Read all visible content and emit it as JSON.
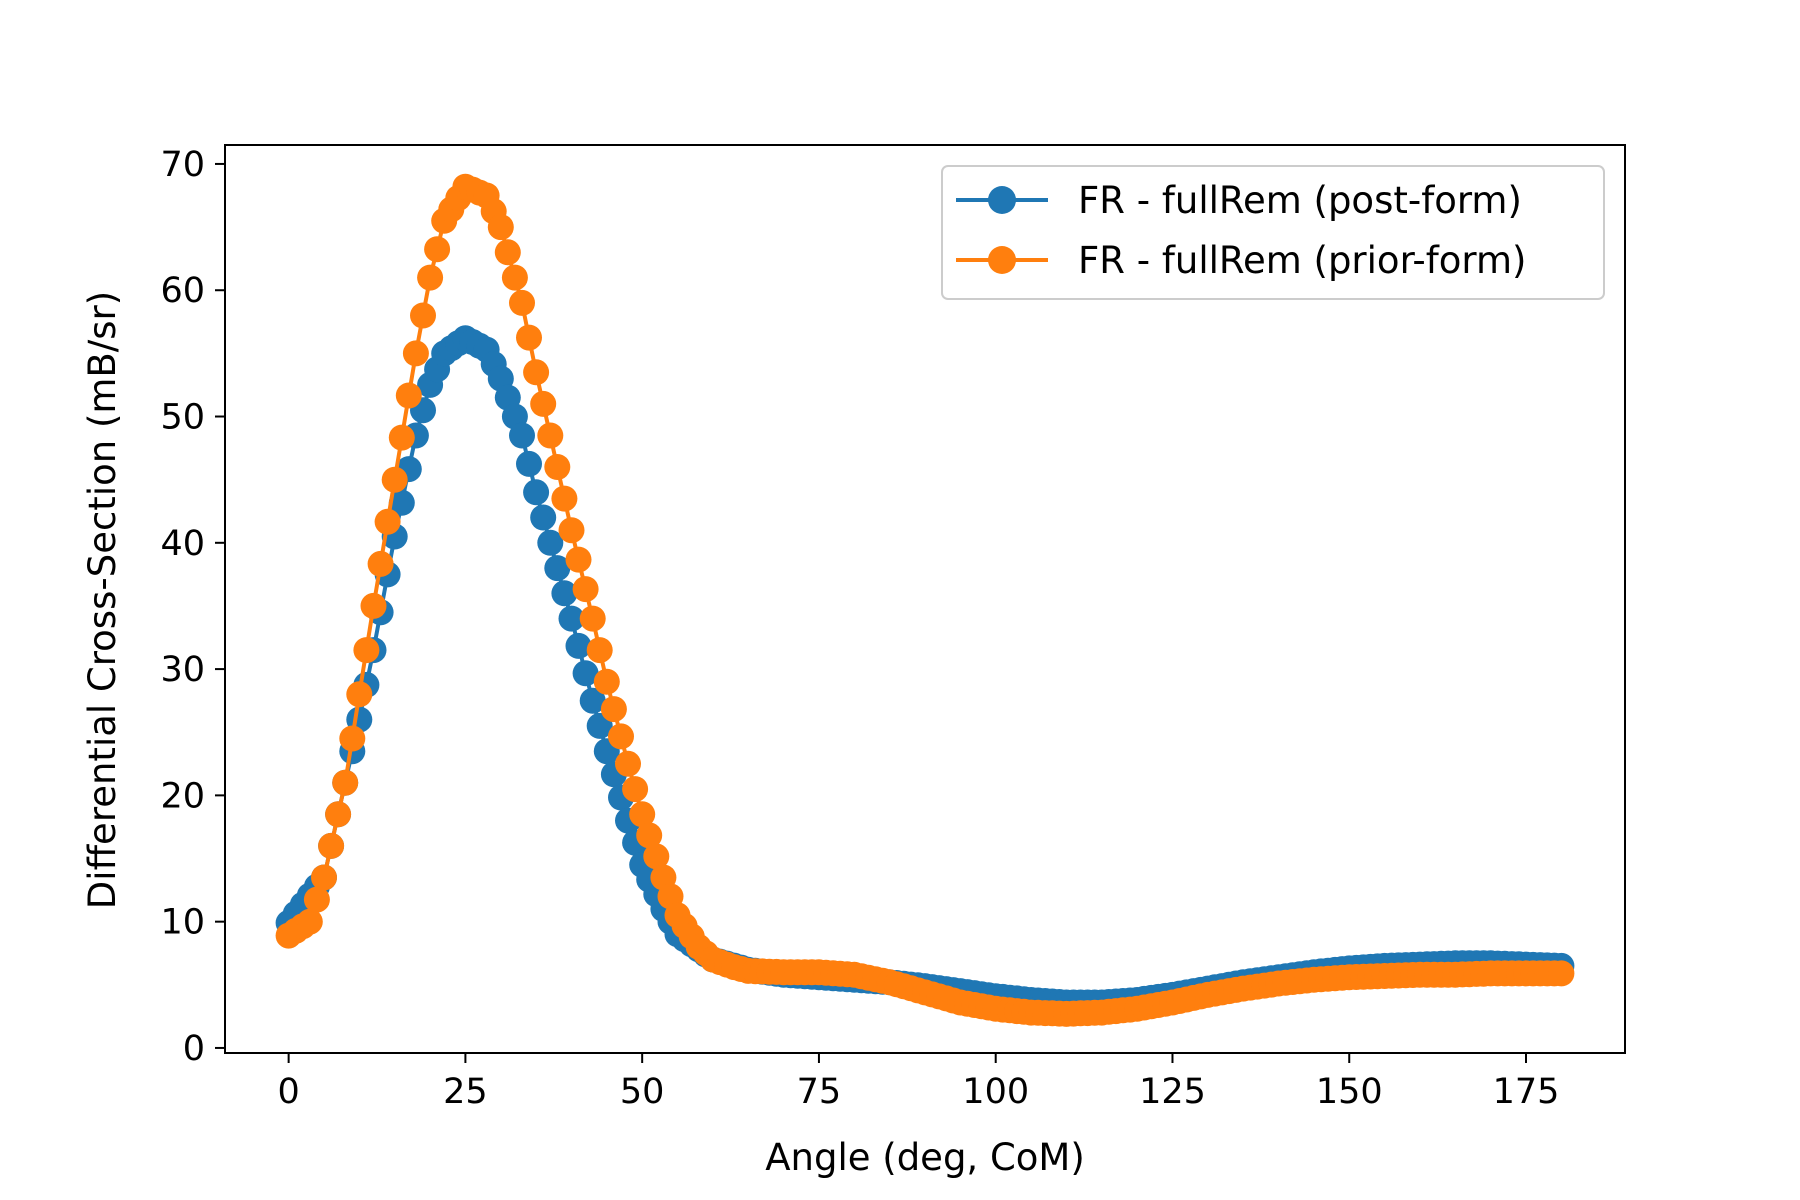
{
  "chart_data": {
    "type": "line",
    "title": "",
    "xlabel": "Angle (deg, CoM)",
    "ylabel": "Differential Cross-Section (mB/sr)",
    "xlim": [
      -9,
      189
    ],
    "ylim": [
      -0.4,
      71.5
    ],
    "xticks": [
      0,
      25,
      50,
      75,
      100,
      125,
      150,
      175
    ],
    "yticks": [
      0,
      10,
      20,
      30,
      40,
      50,
      60,
      70
    ],
    "grid": false,
    "legend_position": "top-right",
    "series": [
      {
        "name": "FR - fullRem (post-form)",
        "color": "#1f77b4",
        "marker": "circle",
        "points": [
          [
            0,
            9.9
          ],
          [
            5,
            13.5
          ],
          [
            10,
            26
          ],
          [
            12,
            31.5
          ],
          [
            15,
            40.5
          ],
          [
            18,
            48.5
          ],
          [
            20,
            52.5
          ],
          [
            22,
            55
          ],
          [
            25,
            56.2
          ],
          [
            28,
            55.3
          ],
          [
            30,
            53
          ],
          [
            33,
            48.5
          ],
          [
            35,
            44
          ],
          [
            38,
            38
          ],
          [
            40,
            34
          ],
          [
            43,
            27.5
          ],
          [
            45,
            23.5
          ],
          [
            48,
            18
          ],
          [
            50,
            14.5
          ],
          [
            53,
            11
          ],
          [
            55,
            9
          ],
          [
            58,
            7.8
          ],
          [
            60,
            7
          ],
          [
            65,
            6.2
          ],
          [
            70,
            5.8
          ],
          [
            75,
            5.6
          ],
          [
            80,
            5.4
          ],
          [
            85,
            5.2
          ],
          [
            90,
            4.9
          ],
          [
            95,
            4.5
          ],
          [
            100,
            4.1
          ],
          [
            105,
            3.8
          ],
          [
            110,
            3.6
          ],
          [
            115,
            3.6
          ],
          [
            120,
            3.8
          ],
          [
            125,
            4.2
          ],
          [
            130,
            4.7
          ],
          [
            135,
            5.2
          ],
          [
            140,
            5.6
          ],
          [
            145,
            6.0
          ],
          [
            150,
            6.3
          ],
          [
            155,
            6.5
          ],
          [
            160,
            6.6
          ],
          [
            165,
            6.7
          ],
          [
            170,
            6.7
          ],
          [
            175,
            6.6
          ],
          [
            180,
            6.5
          ]
        ]
      },
      {
        "name": "FR - fullRem (prior-form)",
        "color": "#ff7f0e",
        "marker": "circle",
        "points": [
          [
            0,
            8.9
          ],
          [
            3,
            10
          ],
          [
            5,
            13.5
          ],
          [
            8,
            21
          ],
          [
            10,
            28
          ],
          [
            12,
            35
          ],
          [
            15,
            45
          ],
          [
            18,
            55
          ],
          [
            20,
            61
          ],
          [
            22,
            65.5
          ],
          [
            25,
            68.2
          ],
          [
            28,
            67.5
          ],
          [
            30,
            65
          ],
          [
            33,
            59
          ],
          [
            35,
            53.5
          ],
          [
            38,
            46
          ],
          [
            40,
            41
          ],
          [
            43,
            34
          ],
          [
            45,
            29
          ],
          [
            48,
            22.5
          ],
          [
            50,
            18.5
          ],
          [
            53,
            13.5
          ],
          [
            55,
            10.5
          ],
          [
            58,
            8
          ],
          [
            60,
            7
          ],
          [
            63,
            6.4
          ],
          [
            65,
            6.1
          ],
          [
            70,
            6
          ],
          [
            75,
            6
          ],
          [
            80,
            5.8
          ],
          [
            85,
            5.2
          ],
          [
            90,
            4.4
          ],
          [
            95,
            3.6
          ],
          [
            100,
            3.1
          ],
          [
            105,
            2.8
          ],
          [
            110,
            2.7
          ],
          [
            115,
            2.8
          ],
          [
            120,
            3.1
          ],
          [
            125,
            3.6
          ],
          [
            130,
            4.2
          ],
          [
            135,
            4.7
          ],
          [
            140,
            5.1
          ],
          [
            145,
            5.4
          ],
          [
            150,
            5.6
          ],
          [
            155,
            5.7
          ],
          [
            160,
            5.8
          ],
          [
            165,
            5.8
          ],
          [
            170,
            5.9
          ],
          [
            175,
            5.9
          ],
          [
            180,
            5.9
          ]
        ]
      }
    ]
  }
}
